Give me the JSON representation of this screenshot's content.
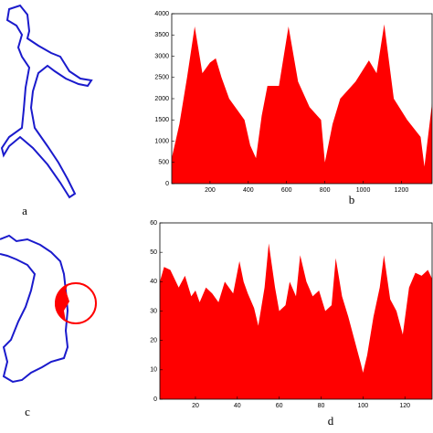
{
  "panels": {
    "labels": [
      "a",
      "c"
    ]
  },
  "chart_data": [
    {
      "type": "area",
      "caption": "b",
      "color": "#ff0000",
      "x": [
        0,
        40,
        80,
        120,
        160,
        200,
        230,
        260,
        300,
        340,
        380,
        410,
        440,
        470,
        500,
        560,
        610,
        660,
        720,
        780,
        800,
        840,
        880,
        960,
        1030,
        1070,
        1110,
        1160,
        1230,
        1300,
        1320,
        1360
      ],
      "values": [
        600,
        1400,
        2500,
        3700,
        2600,
        2850,
        2950,
        2500,
        2000,
        1750,
        1500,
        900,
        600,
        1600,
        2300,
        2300,
        3700,
        2400,
        1800,
        1500,
        500,
        1400,
        2000,
        2400,
        2900,
        2600,
        3750,
        2000,
        1500,
        1100,
        400,
        1900
      ],
      "xlim": [
        0,
        1360
      ],
      "ylim": [
        0,
        4000
      ],
      "xticks": [
        200,
        400,
        600,
        800,
        1000,
        1200
      ],
      "yticks": [
        0,
        500,
        1000,
        1500,
        2000,
        2500,
        3000,
        3500,
        4000
      ]
    },
    {
      "type": "area",
      "caption": "d",
      "color": "#ff0000",
      "x": [
        3,
        5,
        8,
        12,
        15,
        18,
        20,
        22,
        25,
        28,
        31,
        34,
        36,
        38,
        41,
        43,
        45,
        48,
        50,
        53,
        55,
        58,
        60,
        63,
        65,
        68,
        70,
        73,
        76,
        79,
        82,
        85,
        87,
        90,
        93,
        96,
        99,
        100,
        102,
        105,
        108,
        110,
        113,
        116,
        119,
        122,
        125,
        128,
        131,
        133
      ],
      "values": [
        40,
        45,
        44,
        38,
        42,
        35,
        37,
        33,
        38,
        36,
        33,
        40,
        38,
        36,
        47,
        40,
        36,
        31,
        25,
        38,
        53,
        38,
        30,
        32,
        40,
        35,
        49,
        40,
        35,
        37,
        30,
        32,
        48,
        35,
        28,
        20,
        12,
        9,
        15,
        28,
        38,
        49,
        34,
        30,
        22,
        38,
        43,
        42,
        44,
        41
      ],
      "xlim": [
        3,
        133
      ],
      "ylim": [
        0,
        60
      ],
      "xticks": [
        20,
        40,
        60,
        80,
        100,
        120
      ],
      "yticks": [
        0,
        10,
        20,
        30,
        40,
        50,
        60
      ]
    }
  ]
}
